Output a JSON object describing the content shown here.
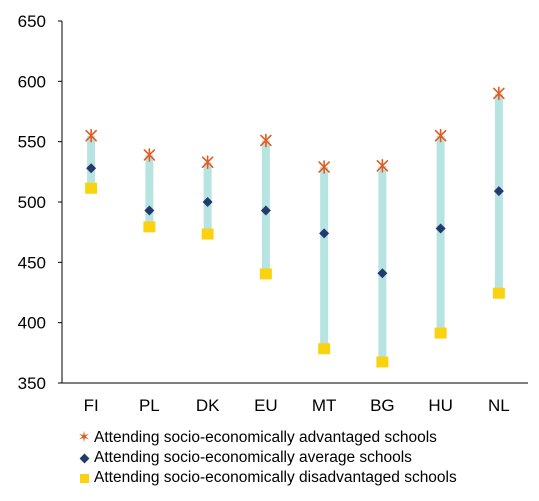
{
  "chart_data": {
    "type": "scatter",
    "title": "",
    "xlabel": "",
    "ylabel": "",
    "categories": [
      "FI",
      "PL",
      "DK",
      "EU",
      "MT",
      "BG",
      "HU",
      "NL"
    ],
    "ylim": [
      350,
      650
    ],
    "yticks": [
      "350",
      "400",
      "450",
      "500",
      "550",
      "600",
      "650"
    ],
    "grid": false,
    "legend_position": "bottom",
    "range_bar_color": "#b7e4e0",
    "series": [
      {
        "name": "Attending socio-economically advantaged schools",
        "marker": "x-star",
        "color": "#e25b1f",
        "values": [
          555,
          539,
          533,
          551,
          529,
          530,
          555,
          590
        ]
      },
      {
        "name": "Attending socio-economically average schools",
        "marker": "diamond",
        "color": "#223a6e",
        "values": [
          528,
          493,
          500,
          493,
          474,
          441,
          478,
          509
        ]
      },
      {
        "name": "Attending socio-economically disadvantaged  schools",
        "marker": "square",
        "color": "#fbd20f",
        "values": [
          511,
          479,
          473,
          440,
          378,
          367,
          391,
          424
        ]
      }
    ]
  }
}
